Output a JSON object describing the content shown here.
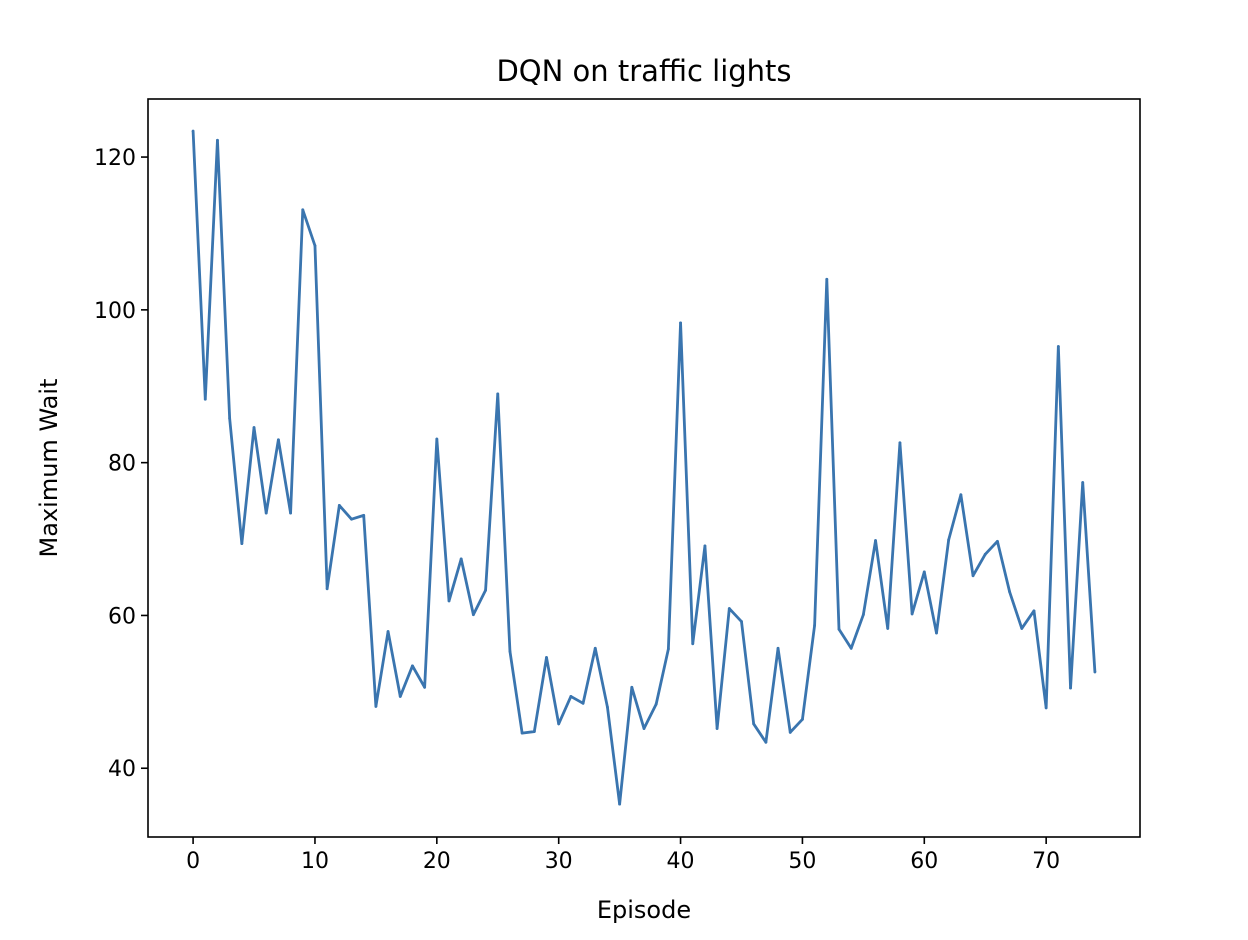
{
  "chart_data": {
    "type": "line",
    "title": "DQN on traffic lights",
    "xlabel": "Episode",
    "ylabel": "Maximum Wait",
    "xlim": [
      -3.7,
      77.7
    ],
    "ylim": [
      31.0,
      127.6
    ],
    "xticks": [
      0,
      10,
      20,
      30,
      40,
      50,
      60,
      70
    ],
    "yticks": [
      40,
      60,
      80,
      100,
      120
    ],
    "grid": false,
    "legend": "none",
    "series": [
      {
        "color": "#3a75af",
        "x": [
          0,
          1,
          2,
          3,
          4,
          5,
          6,
          7,
          8,
          9,
          10,
          11,
          12,
          13,
          14,
          15,
          16,
          17,
          18,
          19,
          20,
          21,
          22,
          23,
          24,
          25,
          26,
          27,
          28,
          29,
          30,
          31,
          32,
          33,
          34,
          35,
          36,
          37,
          38,
          39,
          40,
          41,
          42,
          43,
          44,
          45,
          46,
          47,
          48,
          49,
          50,
          51,
          52,
          53,
          54,
          55,
          56,
          57,
          58,
          59,
          60,
          61,
          62,
          63,
          64,
          65,
          66,
          67,
          68,
          69,
          70,
          71,
          72,
          73,
          74
        ],
        "y": [
          123.4,
          88.3,
          122.2,
          85.8,
          69.4,
          84.6,
          73.4,
          83.0,
          73.4,
          113.1,
          108.4,
          63.5,
          74.4,
          72.6,
          73.1,
          48.1,
          57.9,
          49.4,
          53.4,
          50.6,
          83.1,
          61.9,
          67.4,
          60.1,
          63.3,
          89.0,
          55.3,
          44.6,
          44.8,
          54.5,
          45.8,
          49.4,
          48.5,
          55.7,
          48.0,
          35.3,
          50.6,
          45.2,
          48.4,
          55.6,
          98.3,
          56.3,
          69.1,
          45.2,
          60.9,
          59.2,
          45.8,
          43.4,
          55.7,
          44.7,
          46.4,
          58.7,
          104.0,
          58.2,
          55.7,
          60.1,
          69.8,
          58.3,
          82.6,
          60.2,
          65.7,
          57.7,
          69.9,
          75.8,
          65.2,
          68.0,
          69.7,
          63.1,
          58.3,
          60.6,
          47.9,
          95.2,
          50.5,
          77.4,
          52.6
        ]
      }
    ]
  }
}
